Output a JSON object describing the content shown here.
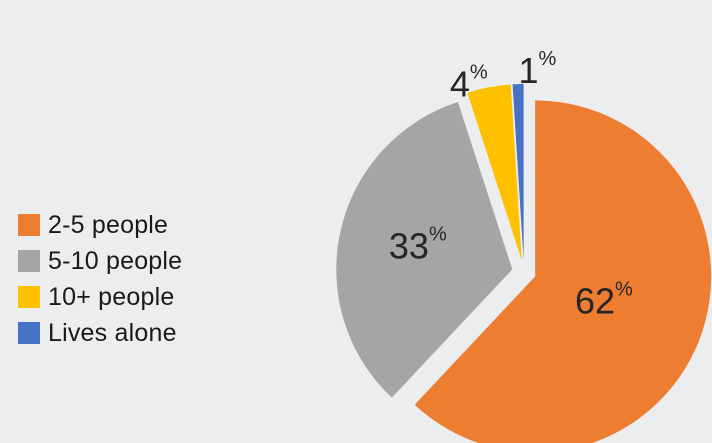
{
  "chart_data": {
    "type": "pie",
    "categories": [
      "2-5 people",
      "5-10 people",
      "10+ people",
      "Lives alone"
    ],
    "values": [
      62,
      33,
      4,
      1
    ],
    "value_labels": [
      "62",
      "33",
      "4",
      "1"
    ],
    "value_suffix": "%",
    "colors": [
      "#ed7d31",
      "#a5a5a5",
      "#ffc000",
      "#4472c4"
    ],
    "exploded": true,
    "legend_position": "left"
  }
}
